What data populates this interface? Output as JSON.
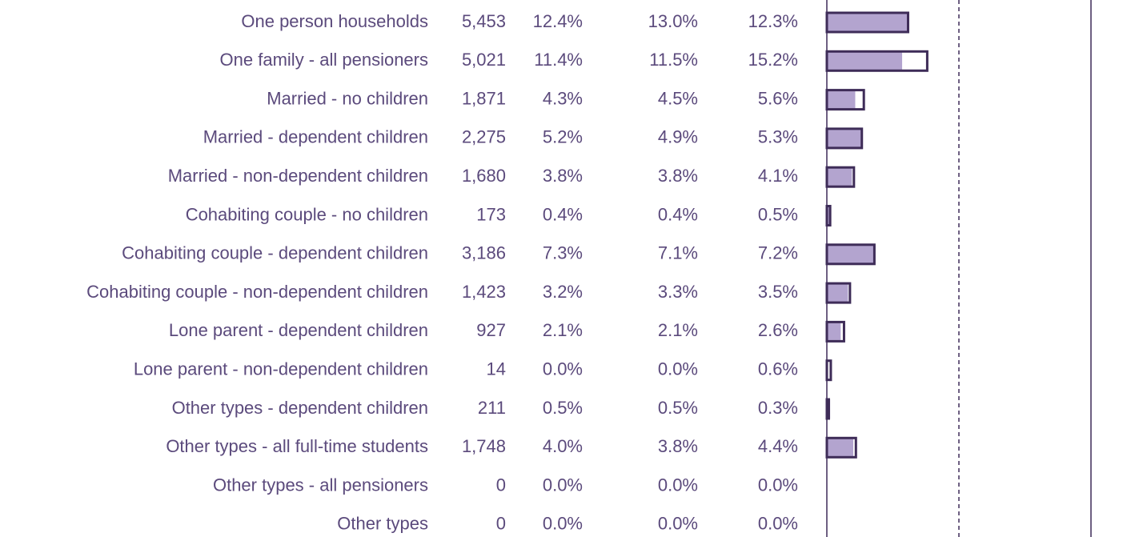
{
  "chart_data": {
    "type": "bar",
    "categories": [
      "One person households",
      "One family - all pensioners",
      "Married - no children",
      "Married - dependent children",
      "Married - non-dependent children",
      "Cohabiting couple - no children",
      "Cohabiting couple - dependent children",
      "Cohabiting couple - non-dependent children",
      "Lone parent - dependent children",
      "Lone parent - non-dependent children",
      "Other types - dependent children",
      "Other types - all full-time students",
      "Other types - all pensioners",
      "Other types"
    ],
    "columns": [
      {
        "values": [
          5453,
          5021,
          1871,
          2275,
          1680,
          173,
          3186,
          1423,
          927,
          14,
          211,
          1748,
          0,
          0
        ],
        "value_labels": [
          "5,453",
          "5,021",
          "1,871",
          "2,275",
          "1,680",
          "173",
          "3,186",
          "1,423",
          "927",
          "14",
          "211",
          "1,748",
          "0",
          "0"
        ]
      },
      {
        "values": [
          12.4,
          11.4,
          4.3,
          5.2,
          3.8,
          0.4,
          7.3,
          3.2,
          2.1,
          0.0,
          0.5,
          4.0,
          0.0,
          0.0
        ],
        "value_labels": [
          "12.4%",
          "11.4%",
          "4.3%",
          "5.2%",
          "3.8%",
          "0.4%",
          "7.3%",
          "3.2%",
          "2.1%",
          "0.0%",
          "0.5%",
          "4.0%",
          "0.0%",
          "0.0%"
        ],
        "bar": "fill",
        "color": "#b3a4cf"
      },
      {
        "values": [
          13.0,
          11.5,
          4.5,
          4.9,
          3.8,
          0.4,
          7.1,
          3.3,
          2.1,
          0.0,
          0.5,
          3.8,
          0.0,
          0.0
        ],
        "value_labels": [
          "13.0%",
          "11.5%",
          "4.5%",
          "4.9%",
          "3.8%",
          "0.4%",
          "7.1%",
          "3.3%",
          "2.1%",
          "0.0%",
          "0.5%",
          "3.8%",
          "0.0%",
          "0.0%"
        ]
      },
      {
        "values": [
          12.3,
          15.2,
          5.6,
          5.3,
          4.1,
          0.5,
          7.2,
          3.5,
          2.6,
          0.6,
          0.3,
          4.4,
          0.0,
          0.0
        ],
        "value_labels": [
          "12.3%",
          "15.2%",
          "5.6%",
          "5.3%",
          "4.1%",
          "0.5%",
          "7.2%",
          "3.5%",
          "2.6%",
          "0.6%",
          "0.3%",
          "4.4%",
          "0.0%",
          "0.0%"
        ],
        "bar": "outline",
        "color": "#3e2c58"
      }
    ],
    "xlim": [
      0,
      40
    ]
  }
}
